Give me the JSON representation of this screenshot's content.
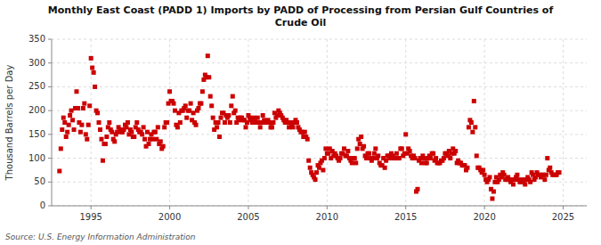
{
  "chart_data": {
    "type": "scatter",
    "title": "Monthly East Coast (PADD 1) Imports by PADD of Processing from Persian Gulf Countries of\nCrude Oil",
    "ylabel": "Thousand Barrels per Day",
    "source": "Source: U.S. Energy Information Administration",
    "color": "#cc0000",
    "marker": "square",
    "grid": true,
    "xlim": [
      1992.5,
      2026.5
    ],
    "ylim": [
      0,
      350
    ],
    "xticks": [
      1995,
      2000,
      2005,
      2010,
      2015,
      2020,
      2025
    ],
    "yticks": [
      0,
      50,
      100,
      150,
      200,
      250,
      300,
      350
    ],
    "x": [
      1993.0,
      1993.083,
      1993.167,
      1993.25,
      1993.333,
      1993.417,
      1993.5,
      1993.583,
      1993.667,
      1993.75,
      1993.833,
      1993.917,
      1994.0,
      1994.083,
      1994.167,
      1994.25,
      1994.333,
      1994.417,
      1994.5,
      1994.583,
      1994.667,
      1994.75,
      1994.833,
      1994.917,
      1995.0,
      1995.083,
      1995.167,
      1995.25,
      1995.333,
      1995.417,
      1995.5,
      1995.583,
      1995.667,
      1995.75,
      1995.833,
      1995.917,
      1996.0,
      1996.083,
      1996.167,
      1996.25,
      1996.333,
      1996.417,
      1996.5,
      1996.583,
      1996.667,
      1996.75,
      1996.833,
      1996.917,
      1997.0,
      1997.083,
      1997.167,
      1997.25,
      1997.333,
      1997.417,
      1997.5,
      1997.583,
      1997.667,
      1997.75,
      1997.833,
      1997.917,
      1998.0,
      1998.083,
      1998.167,
      1998.25,
      1998.333,
      1998.417,
      1998.5,
      1998.583,
      1998.667,
      1998.75,
      1998.833,
      1998.917,
      1999.0,
      1999.083,
      1999.167,
      1999.25,
      1999.333,
      1999.417,
      1999.5,
      1999.583,
      1999.667,
      1999.75,
      1999.833,
      1999.917,
      2000.0,
      2000.083,
      2000.167,
      2000.25,
      2000.333,
      2000.417,
      2000.5,
      2000.583,
      2000.667,
      2000.75,
      2000.833,
      2000.917,
      2001.0,
      2001.083,
      2001.167,
      2001.25,
      2001.333,
      2001.417,
      2001.5,
      2001.583,
      2001.667,
      2001.75,
      2001.833,
      2001.917,
      2002.0,
      2002.083,
      2002.167,
      2002.25,
      2002.333,
      2002.417,
      2002.5,
      2002.583,
      2002.667,
      2002.75,
      2002.833,
      2002.917,
      2003.0,
      2003.083,
      2003.167,
      2003.25,
      2003.333,
      2003.417,
      2003.5,
      2003.583,
      2003.667,
      2003.75,
      2003.833,
      2003.917,
      2004.0,
      2004.083,
      2004.167,
      2004.25,
      2004.333,
      2004.417,
      2004.5,
      2004.583,
      2004.667,
      2004.75,
      2004.833,
      2004.917,
      2005.0,
      2005.083,
      2005.167,
      2005.25,
      2005.333,
      2005.417,
      2005.5,
      2005.583,
      2005.667,
      2005.75,
      2005.833,
      2005.917,
      2006.0,
      2006.083,
      2006.167,
      2006.25,
      2006.333,
      2006.417,
      2006.5,
      2006.583,
      2006.667,
      2006.75,
      2006.833,
      2006.917,
      2007.0,
      2007.083,
      2007.167,
      2007.25,
      2007.333,
      2007.417,
      2007.5,
      2007.583,
      2007.667,
      2007.75,
      2007.833,
      2007.917,
      2008.0,
      2008.083,
      2008.167,
      2008.25,
      2008.333,
      2008.417,
      2008.5,
      2008.583,
      2008.667,
      2008.75,
      2008.833,
      2008.917,
      2009.0,
      2009.083,
      2009.167,
      2009.25,
      2009.333,
      2009.417,
      2009.5,
      2009.583,
      2009.667,
      2009.75,
      2009.833,
      2009.917,
      2010.0,
      2010.083,
      2010.167,
      2010.25,
      2010.333,
      2010.417,
      2010.5,
      2010.583,
      2010.667,
      2010.75,
      2010.833,
      2010.917,
      2011.0,
      2011.083,
      2011.167,
      2011.25,
      2011.333,
      2011.417,
      2011.5,
      2011.583,
      2011.667,
      2011.75,
      2011.833,
      2011.917,
      2012.0,
      2012.083,
      2012.167,
      2012.25,
      2012.333,
      2012.417,
      2012.5,
      2012.583,
      2012.667,
      2012.75,
      2012.833,
      2012.917,
      2013.0,
      2013.083,
      2013.167,
      2013.25,
      2013.333,
      2013.417,
      2013.5,
      2013.583,
      2013.667,
      2013.75,
      2013.833,
      2013.917,
      2014.0,
      2014.083,
      2014.167,
      2014.25,
      2014.333,
      2014.417,
      2014.5,
      2014.583,
      2014.667,
      2014.75,
      2014.833,
      2014.917,
      2015.0,
      2015.083,
      2015.167,
      2015.25,
      2015.333,
      2015.417,
      2015.5,
      2015.583,
      2015.667,
      2015.75,
      2015.833,
      2015.917,
      2016.0,
      2016.083,
      2016.167,
      2016.25,
      2016.333,
      2016.417,
      2016.5,
      2016.583,
      2016.667,
      2016.75,
      2016.833,
      2016.917,
      2017.0,
      2017.083,
      2017.167,
      2017.25,
      2017.333,
      2017.417,
      2017.5,
      2017.583,
      2017.667,
      2017.75,
      2017.833,
      2017.917,
      2018.0,
      2018.083,
      2018.167,
      2018.25,
      2018.333,
      2018.417,
      2018.5,
      2018.583,
      2018.667,
      2018.75,
      2018.833,
      2018.917,
      2019.0,
      2019.083,
      2019.167,
      2019.25,
      2019.333,
      2019.417,
      2019.5,
      2019.583,
      2019.667,
      2019.75,
      2019.833,
      2019.917,
      2020.0,
      2020.083,
      2020.167,
      2020.25,
      2020.333,
      2020.417,
      2020.5,
      2020.583,
      2020.667,
      2020.75,
      2020.833,
      2020.917,
      2021.0,
      2021.083,
      2021.167,
      2021.25,
      2021.333,
      2021.417,
      2021.5,
      2021.583,
      2021.667,
      2021.75,
      2021.833,
      2021.917,
      2022.0,
      2022.083,
      2022.167,
      2022.25,
      2022.333,
      2022.417,
      2022.5,
      2022.583,
      2022.667,
      2022.75,
      2022.833,
      2022.917,
      2023.0,
      2023.083,
      2023.167,
      2023.25,
      2023.333,
      2023.417,
      2023.5,
      2023.583,
      2023.667,
      2023.75,
      2023.833,
      2023.917,
      2024.0,
      2024.083,
      2024.167,
      2024.25,
      2024.333,
      2024.417,
      2024.5,
      2024.583,
      2024.667,
      2024.75
    ],
    "values": [
      73,
      120,
      160,
      185,
      175,
      145,
      155,
      170,
      190,
      200,
      180,
      160,
      205,
      240,
      205,
      175,
      155,
      170,
      205,
      215,
      150,
      140,
      170,
      210,
      310,
      290,
      280,
      250,
      200,
      195,
      175,
      160,
      140,
      95,
      130,
      130,
      145,
      165,
      175,
      160,
      155,
      140,
      135,
      150,
      155,
      165,
      160,
      155,
      155,
      160,
      170,
      165,
      175,
      150,
      160,
      155,
      145,
      145,
      165,
      175,
      160,
      155,
      155,
      150,
      165,
      140,
      125,
      155,
      130,
      140,
      150,
      140,
      155,
      155,
      140,
      165,
      130,
      135,
      120,
      125,
      165,
      175,
      175,
      215,
      240,
      220,
      220,
      215,
      200,
      170,
      165,
      195,
      175,
      200,
      200,
      205,
      210,
      185,
      200,
      200,
      215,
      180,
      195,
      175,
      170,
      200,
      205,
      215,
      215,
      240,
      265,
      275,
      270,
      315,
      270,
      230,
      210,
      185,
      160,
      175,
      165,
      175,
      145,
      185,
      195,
      195,
      175,
      190,
      185,
      190,
      175,
      210,
      230,
      195,
      200,
      175,
      185,
      180,
      185,
      185,
      180,
      180,
      165,
      175,
      190,
      185,
      180,
      175,
      185,
      180,
      175,
      185,
      175,
      165,
      175,
      190,
      180,
      175,
      175,
      180,
      175,
      165,
      165,
      175,
      195,
      185,
      190,
      200,
      195,
      190,
      185,
      180,
      175,
      180,
      175,
      165,
      175,
      170,
      165,
      175,
      180,
      175,
      165,
      160,
      155,
      155,
      145,
      155,
      145,
      140,
      95,
      80,
      70,
      65,
      60,
      55,
      70,
      85,
      80,
      90,
      95,
      75,
      100,
      120,
      110,
      110,
      120,
      100,
      115,
      105,
      110,
      105,
      100,
      95,
      100,
      110,
      110,
      120,
      105,
      105,
      115,
      100,
      95,
      90,
      100,
      100,
      90,
      120,
      140,
      130,
      145,
      120,
      125,
      105,
      100,
      110,
      110,
      100,
      95,
      100,
      110,
      120,
      100,
      105,
      90,
      85,
      85,
      100,
      80,
      95,
      105,
      105,
      100,
      110,
      105,
      100,
      100,
      110,
      100,
      100,
      120,
      120,
      105,
      110,
      150,
      110,
      120,
      115,
      105,
      100,
      105,
      100,
      30,
      35,
      95,
      100,
      90,
      105,
      100,
      90,
      90,
      100,
      105,
      100,
      110,
      110,
      95,
      100,
      90,
      90,
      90,
      95,
      95,
      100,
      110,
      110,
      105,
      115,
      100,
      110,
      120,
      110,
      115,
      90,
      95,
      90,
      90,
      85,
      85,
      85,
      75,
      80,
      165,
      180,
      175,
      155,
      220,
      165,
      105,
      80,
      80,
      75,
      70,
      75,
      65,
      55,
      50,
      55,
      60,
      35,
      15,
      30,
      50,
      60,
      50,
      55,
      65,
      60,
      70,
      65,
      55,
      55,
      60,
      55,
      50,
      55,
      45,
      55,
      60,
      65,
      55,
      50,
      50,
      55,
      50,
      45,
      55,
      60,
      55,
      50,
      70,
      65,
      55,
      60,
      70,
      65,
      65,
      60,
      65,
      65,
      55,
      65,
      100,
      75,
      80,
      70,
      65,
      65,
      65,
      65,
      70,
      70
    ]
  }
}
